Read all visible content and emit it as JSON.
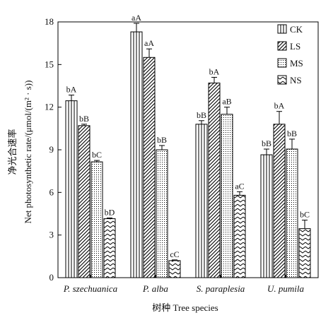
{
  "chart_data": {
    "type": "bar",
    "categories": [
      "P. szechuanica",
      "P. alba",
      "S. paraplesia",
      "U. pumila"
    ],
    "series": [
      {
        "name": "CK",
        "values": [
          12.45,
          17.3,
          10.8,
          8.65
        ],
        "errors": [
          0.4,
          0.6,
          0.25,
          0.4
        ],
        "labels": [
          "bA",
          "aA",
          "bB",
          "bB"
        ],
        "pattern": "vertical"
      },
      {
        "name": "LS",
        "values": [
          10.7,
          15.5,
          13.7,
          10.8
        ],
        "errors": [
          0.1,
          0.6,
          0.4,
          0.9
        ],
        "labels": [
          "bB",
          "aA",
          "bA",
          "bA"
        ],
        "pattern": "diagonal"
      },
      {
        "name": "MS",
        "values": [
          8.15,
          9.0,
          11.5,
          9.05
        ],
        "errors": [
          0.1,
          0.3,
          0.5,
          0.7
        ],
        "labels": [
          "bC",
          "bB",
          "aB",
          "bB"
        ],
        "pattern": "dots"
      },
      {
        "name": "NS",
        "values": [
          4.15,
          1.2,
          5.8,
          3.45
        ],
        "errors": [
          0.05,
          0.05,
          0.25,
          0.6
        ],
        "labels": [
          "bD",
          "cC",
          "aC",
          "bC"
        ],
        "pattern": "zigzag"
      }
    ],
    "ylabel_cn": "净光合速率",
    "ylabel_en": "Net photosynthetic rate/(μmol/(m² · s))",
    "xlabel": "树种 Tree species",
    "ylim": [
      0,
      18
    ],
    "yticks": [
      0,
      3,
      6,
      9,
      12,
      15,
      18
    ],
    "legend_position": "top-right",
    "grid": false
  }
}
